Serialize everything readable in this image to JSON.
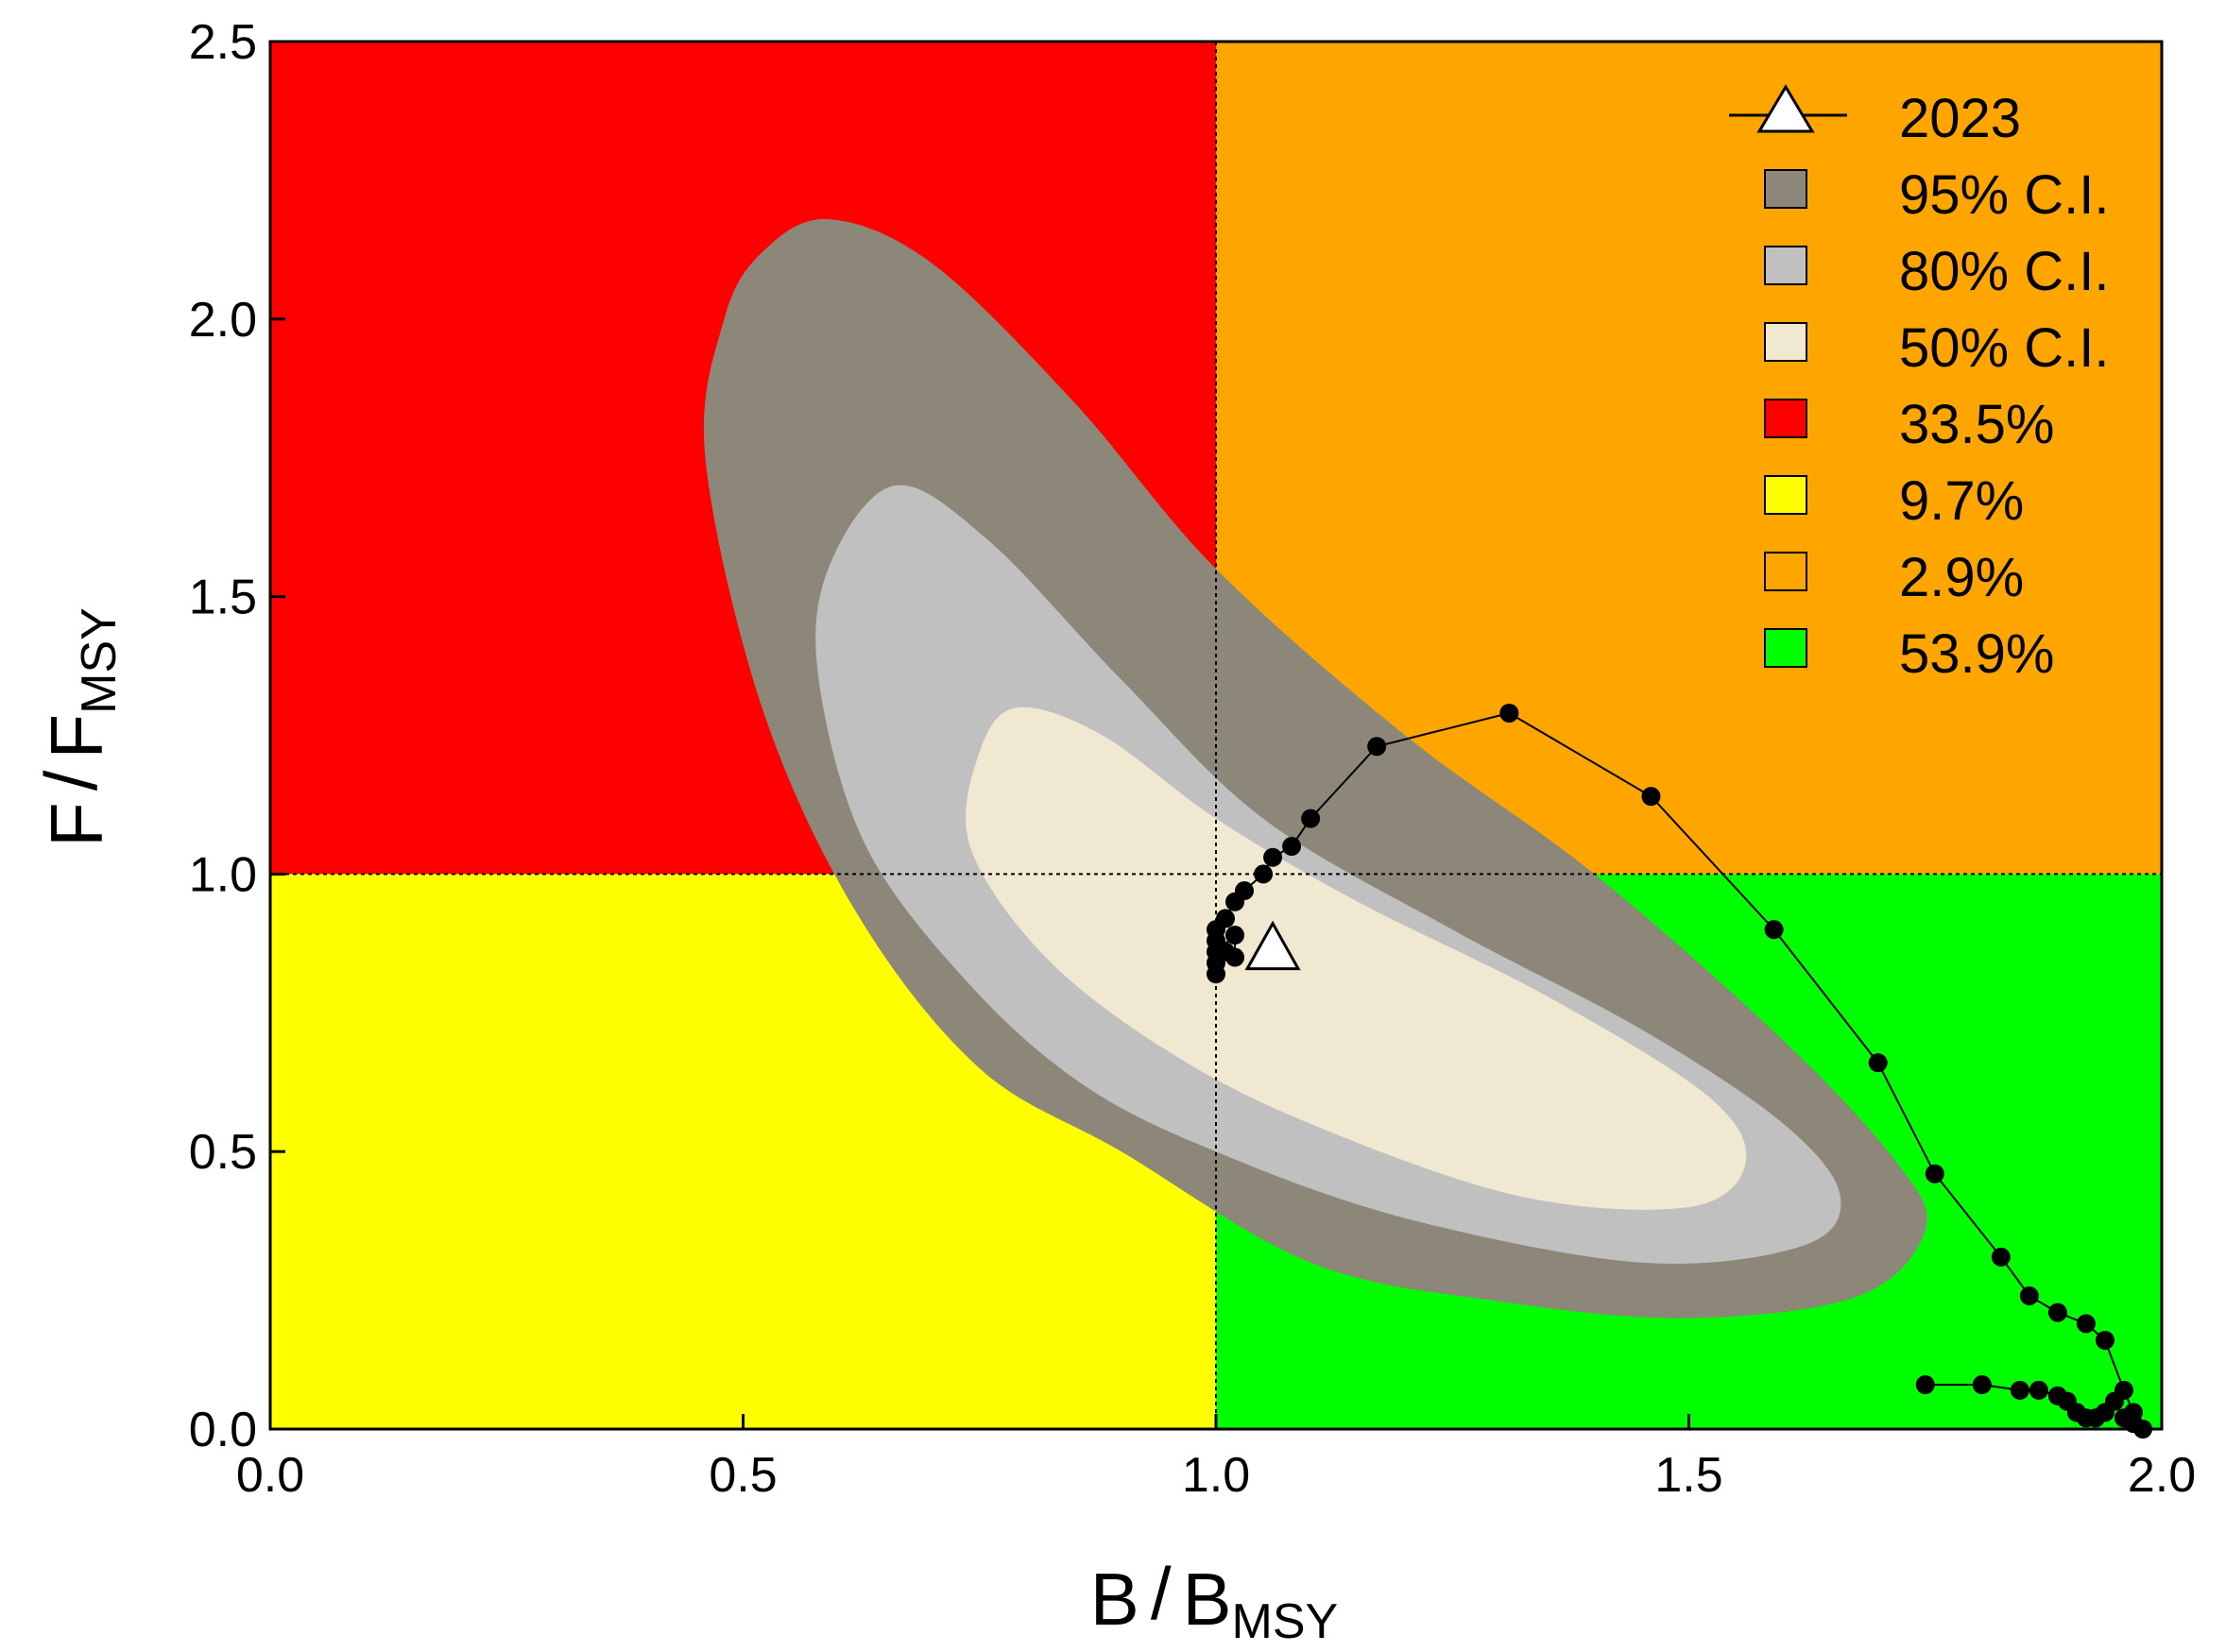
{
  "chart_data": {
    "type": "scatter",
    "xlabel": "B",
    "xlabel_sub": "MSY",
    "ylabel": "F",
    "ylabel_sub": "MSY",
    "xlim": [
      0.0,
      2.0
    ],
    "ylim": [
      0.0,
      2.5
    ],
    "x_ticks": [
      "0.0",
      "0.5",
      "1.0",
      "1.5",
      "2.0"
    ],
    "y_ticks": [
      "0.0",
      "0.5",
      "1.0",
      "1.5",
      "2.0",
      "2.5"
    ],
    "reference_lines": {
      "x": 1.0,
      "y": 1.0
    },
    "quadrants": [
      {
        "name": "overfished-overfishing",
        "xrange": [
          0,
          1
        ],
        "yrange": [
          1,
          2.5
        ],
        "color": "#ff0000",
        "probability": "33.5%"
      },
      {
        "name": "healthy-overfishing",
        "xrange": [
          1,
          2
        ],
        "yrange": [
          1,
          2.5
        ],
        "color": "#ffa500",
        "probability": "2.9%"
      },
      {
        "name": "overfished-no-overfishing",
        "xrange": [
          0,
          1
        ],
        "yrange": [
          0,
          1
        ],
        "color": "#ffff00",
        "probability": "9.7%"
      },
      {
        "name": "healthy",
        "xrange": [
          1,
          2
        ],
        "yrange": [
          0,
          1
        ],
        "color": "#00ff00",
        "probability": "53.9%"
      }
    ],
    "confidence_regions": [
      {
        "level": "95% C.I.",
        "color": "#8c8778",
        "points": [
          [
            0.59,
            2.18
          ],
          [
            0.7,
            2.1
          ],
          [
            0.85,
            1.85
          ],
          [
            1.0,
            1.55
          ],
          [
            1.2,
            1.25
          ],
          [
            1.4,
            1.0
          ],
          [
            1.6,
            0.7
          ],
          [
            1.72,
            0.48
          ],
          [
            1.75,
            0.36
          ],
          [
            1.68,
            0.24
          ],
          [
            1.5,
            0.2
          ],
          [
            1.3,
            0.23
          ],
          [
            1.1,
            0.3
          ],
          [
            0.9,
            0.5
          ],
          [
            0.75,
            0.65
          ],
          [
            0.62,
            0.93
          ],
          [
            0.52,
            1.3
          ],
          [
            0.46,
            1.75
          ],
          [
            0.48,
            2.0
          ],
          [
            0.52,
            2.12
          ]
        ]
      },
      {
        "level": "80% C.I.",
        "color": "#c0c0c0",
        "points": [
          [
            0.66,
            1.7
          ],
          [
            0.76,
            1.6
          ],
          [
            0.9,
            1.35
          ],
          [
            1.05,
            1.1
          ],
          [
            1.25,
            0.9
          ],
          [
            1.45,
            0.72
          ],
          [
            1.6,
            0.55
          ],
          [
            1.66,
            0.42
          ],
          [
            1.62,
            0.33
          ],
          [
            1.45,
            0.3
          ],
          [
            1.2,
            0.38
          ],
          [
            1.0,
            0.5
          ],
          [
            0.86,
            0.62
          ],
          [
            0.74,
            0.8
          ],
          [
            0.63,
            1.05
          ],
          [
            0.58,
            1.35
          ],
          [
            0.59,
            1.55
          ]
        ]
      },
      {
        "level": "50% C.I.",
        "color": "#f0e8d0",
        "points": [
          [
            0.79,
            1.3
          ],
          [
            0.88,
            1.25
          ],
          [
            1.0,
            1.1
          ],
          [
            1.15,
            0.95
          ],
          [
            1.35,
            0.78
          ],
          [
            1.52,
            0.6
          ],
          [
            1.56,
            0.48
          ],
          [
            1.5,
            0.4
          ],
          [
            1.32,
            0.42
          ],
          [
            1.1,
            0.55
          ],
          [
            0.95,
            0.68
          ],
          [
            0.82,
            0.85
          ],
          [
            0.74,
            1.05
          ],
          [
            0.75,
            1.22
          ]
        ]
      }
    ],
    "series": [
      {
        "points": [
          [
            1.75,
            0.08
          ],
          [
            1.81,
            0.08
          ],
          [
            1.85,
            0.07
          ],
          [
            1.87,
            0.07
          ],
          [
            1.89,
            0.06
          ],
          [
            1.9,
            0.05
          ],
          [
            1.91,
            0.03
          ],
          [
            1.92,
            0.02
          ],
          [
            1.93,
            0.02
          ],
          [
            1.94,
            0.03
          ],
          [
            1.95,
            0.05
          ],
          [
            1.96,
            0.02
          ],
          [
            1.97,
            0.01
          ],
          [
            1.98,
            0.0
          ],
          [
            1.97,
            0.03
          ],
          [
            1.96,
            0.07
          ],
          [
            1.94,
            0.16
          ],
          [
            1.92,
            0.19
          ],
          [
            1.89,
            0.21
          ],
          [
            1.86,
            0.24
          ],
          [
            1.83,
            0.31
          ],
          [
            1.76,
            0.46
          ],
          [
            1.7,
            0.66
          ],
          [
            1.59,
            0.9
          ],
          [
            1.46,
            1.14
          ],
          [
            1.31,
            1.29
          ],
          [
            1.17,
            1.23
          ],
          [
            1.1,
            1.1
          ],
          [
            1.08,
            1.05
          ],
          [
            1.06,
            1.03
          ],
          [
            1.05,
            1.0
          ],
          [
            1.03,
            0.97
          ],
          [
            1.02,
            0.95
          ],
          [
            1.01,
            0.92
          ],
          [
            1.0,
            0.9
          ],
          [
            1.0,
            0.88
          ],
          [
            1.01,
            0.86
          ],
          [
            1.02,
            0.85
          ],
          [
            1.02,
            0.89
          ],
          [
            1.0,
            0.86
          ],
          [
            1.0,
            0.84
          ],
          [
            1.0,
            0.82
          ]
        ]
      }
    ],
    "current_point": {
      "year": "2023",
      "x": 1.06,
      "y": 0.86
    },
    "legend": {
      "position": "top-right",
      "items": [
        {
          "label": "2023",
          "symbol": "triangle-line"
        },
        {
          "label": "95% C.I.",
          "color": "#8c8778"
        },
        {
          "label": "80% C.I.",
          "color": "#c0c0c0"
        },
        {
          "label": "50% C.I.",
          "color": "#f0e8d0"
        },
        {
          "label": "33.5%",
          "color": "#ff0000"
        },
        {
          "label": "9.7%",
          "color": "#ffff00"
        },
        {
          "label": "2.9%",
          "color": "#ffa500"
        },
        {
          "label": "53.9%",
          "color": "#00ff00"
        }
      ]
    }
  }
}
